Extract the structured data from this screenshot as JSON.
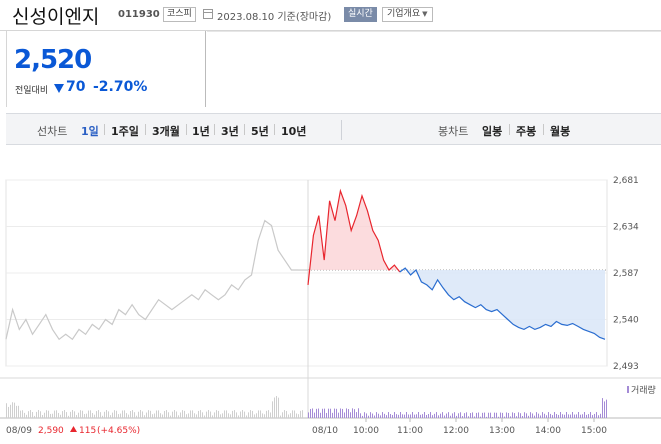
{
  "header": {
    "stock_name": "신성이엔지",
    "stock_code": "011930",
    "market": "코스피",
    "date_text": "2023.08.10 기준(장마감)",
    "realtime_label": "실시간",
    "company_info_label": "기업개요"
  },
  "price": {
    "current": "2,520",
    "diff_label": "전일대비",
    "diff_value": "70",
    "diff_pct": "-2.70%"
  },
  "tabs": {
    "line_chart_label": "선차트",
    "line_periods": [
      "1일",
      "1주일",
      "3개월",
      "1년",
      "3년",
      "5년",
      "10년"
    ],
    "active_period": "1일",
    "candle_chart_label": "봉차트",
    "candle_periods": [
      "일봉",
      "주봉",
      "월봉"
    ]
  },
  "colors": {
    "up": "#e8262e",
    "down": "#2a6dd0",
    "prev_day_line": "#c9c9c9"
  },
  "chart_data": {
    "type": "line",
    "ylim": [
      2493,
      2681
    ],
    "y_ticks": [
      "2,681",
      "2,634",
      "2,587",
      "2,540",
      "2,493"
    ],
    "x_ticks": [
      "10:00",
      "11:00",
      "12:00",
      "13:00",
      "14:00",
      "15:00"
    ],
    "volume_legend": "거래량",
    "prev_close": 2590,
    "prev_day": {
      "date": "08/09",
      "close": "2,590",
      "change": "115",
      "pct": "(+4.65%)",
      "values": [
        2520,
        2550,
        2530,
        2540,
        2525,
        2535,
        2545,
        2530,
        2520,
        2525,
        2520,
        2530,
        2525,
        2535,
        2530,
        2540,
        2535,
        2550,
        2545,
        2555,
        2545,
        2540,
        2550,
        2560,
        2555,
        2550,
        2555,
        2560,
        2565,
        2560,
        2570,
        2565,
        2560,
        2565,
        2575,
        2570,
        2580,
        2585,
        2620,
        2640,
        2635,
        2610,
        2600,
        2590,
        2590
      ]
    },
    "today": {
      "date": "08/10",
      "values": [
        2575,
        2625,
        2645,
        2600,
        2660,
        2640,
        2670,
        2655,
        2630,
        2645,
        2665,
        2650,
        2630,
        2620,
        2600,
        2590,
        2595,
        2588,
        2592,
        2585,
        2590,
        2578,
        2575,
        2570,
        2580,
        2572,
        2565,
        2560,
        2563,
        2558,
        2555,
        2552,
        2555,
        2550,
        2548,
        2550,
        2545,
        2540,
        2535,
        2532,
        2530,
        2533,
        2530,
        2532,
        2535,
        2533,
        2538,
        2535,
        2534,
        2536,
        2533,
        2530,
        2528,
        2526,
        2522,
        2520
      ]
    }
  }
}
